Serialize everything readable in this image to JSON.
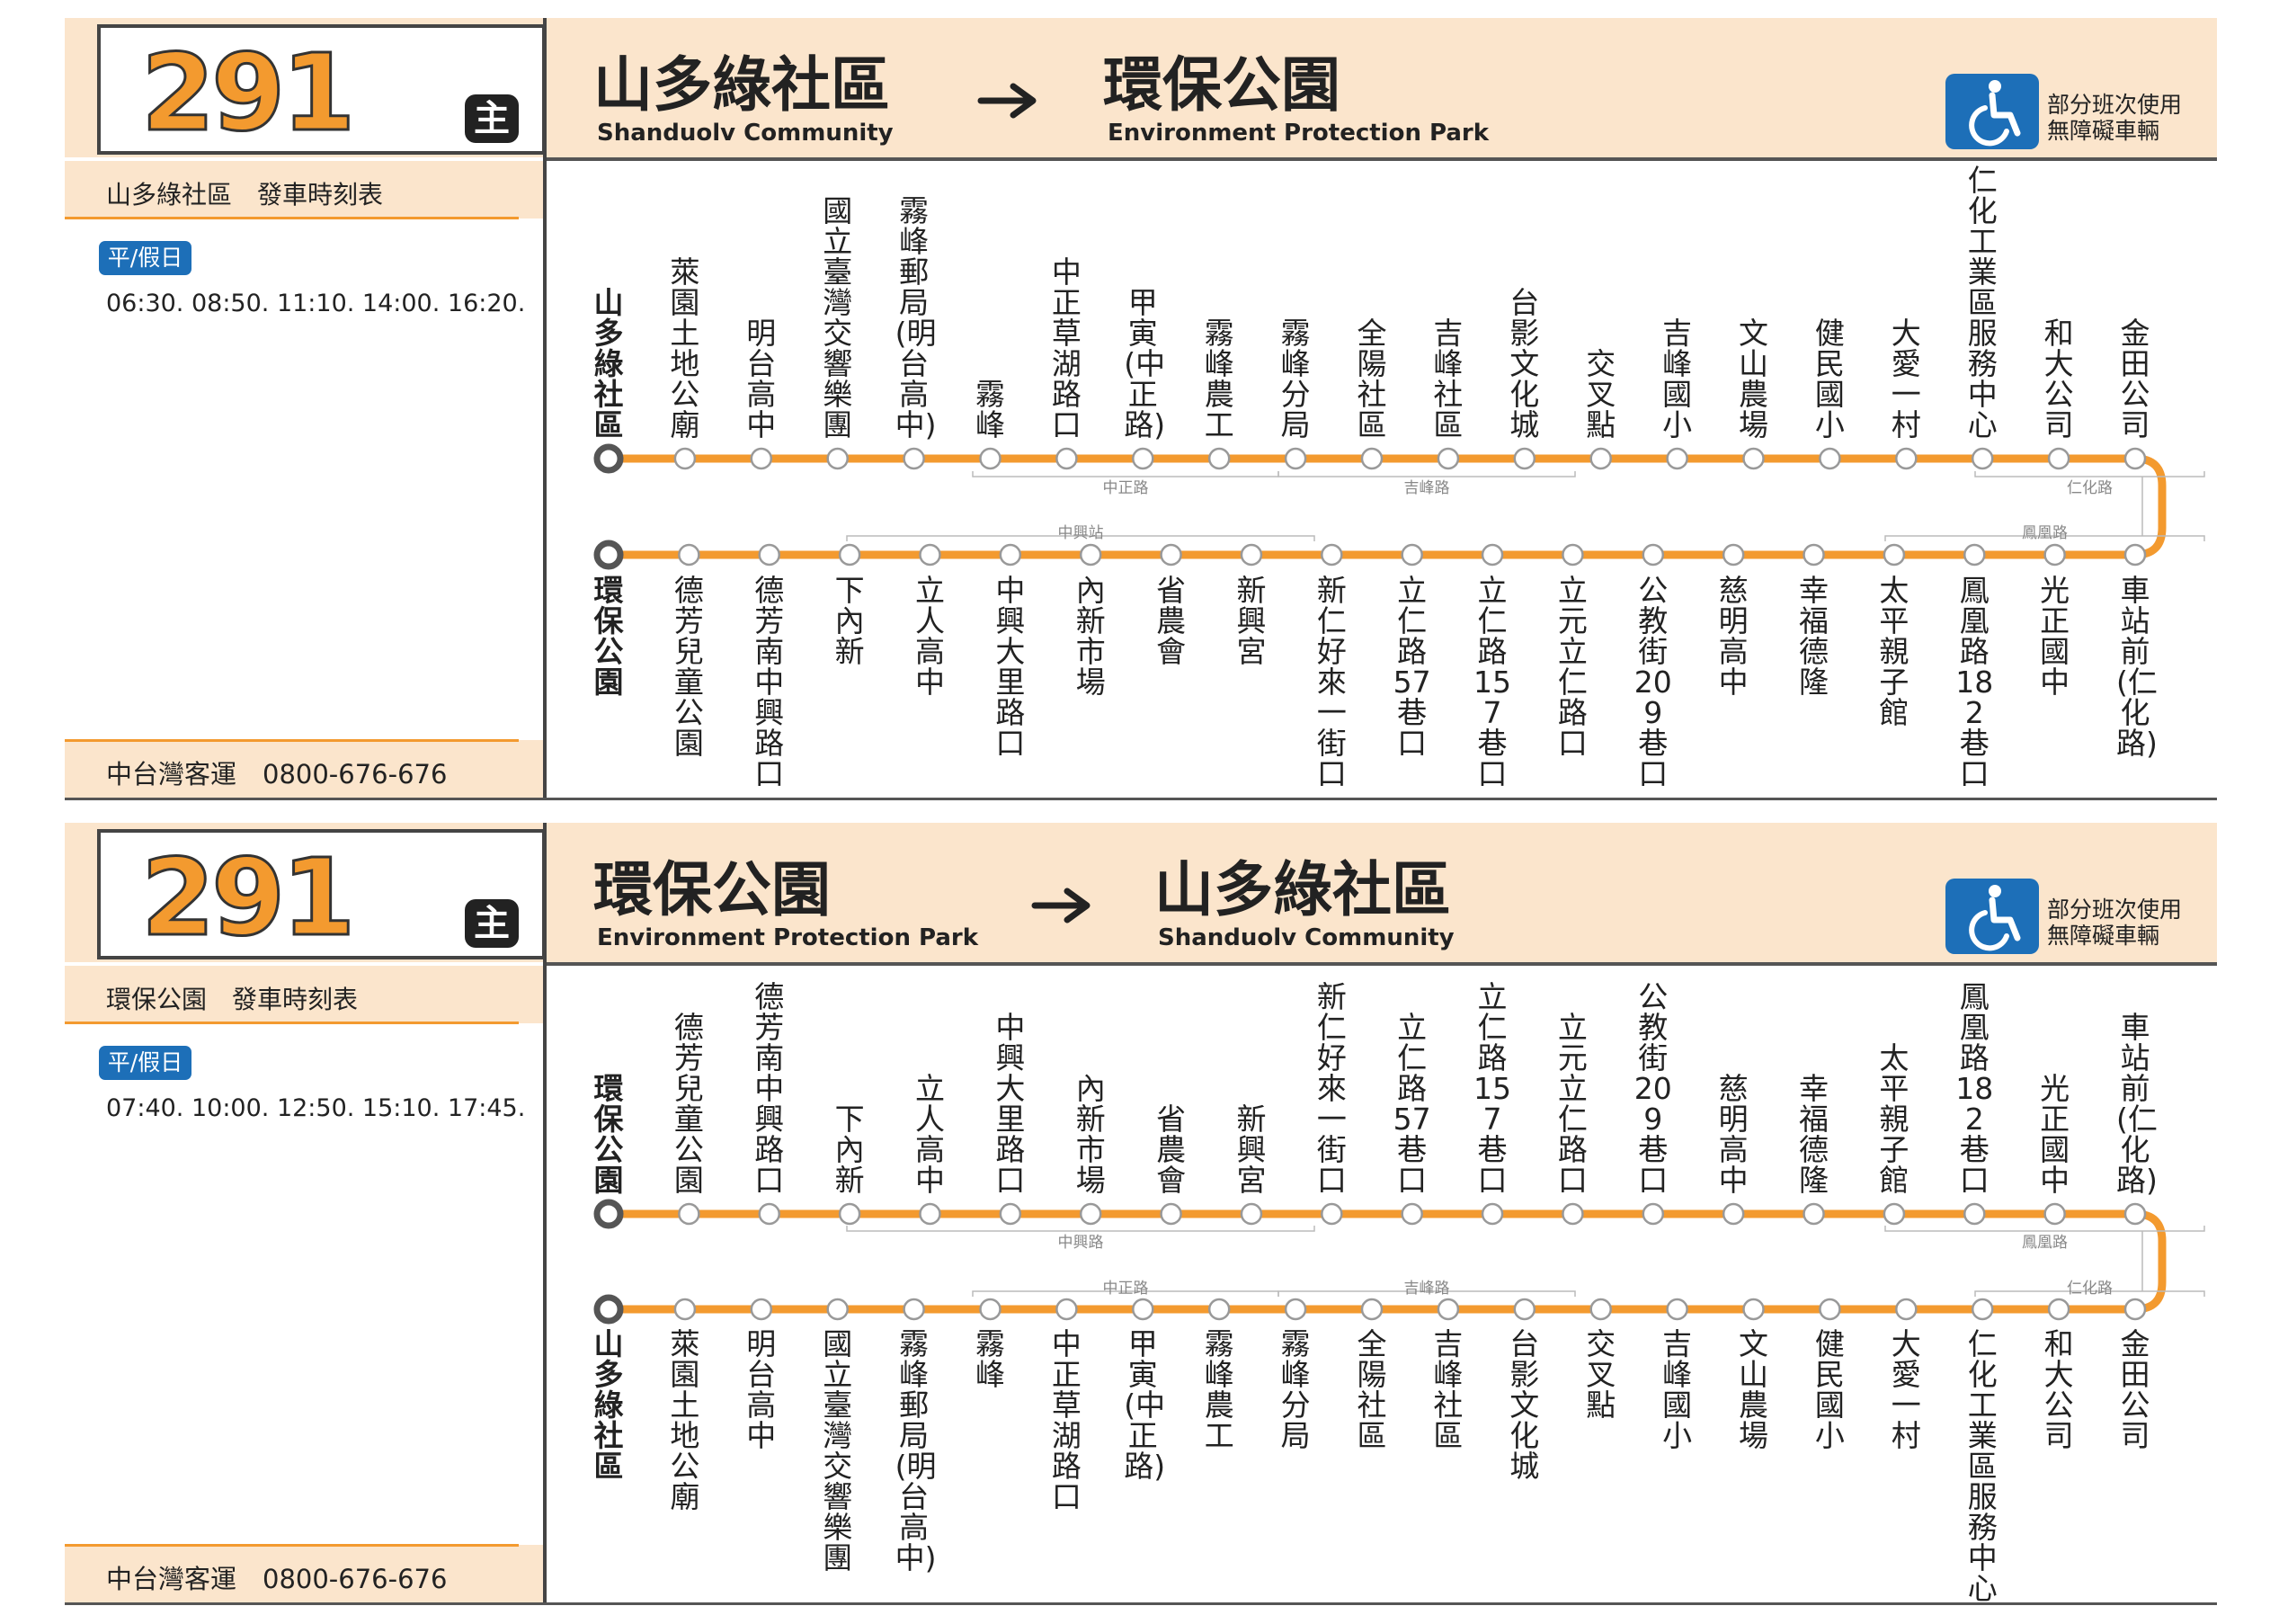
{
  "panels": [
    {
      "route_number": "291",
      "route_badge": "主",
      "from_zh": "山多綠社區",
      "from_en": "Shanduolv Community",
      "to_zh": "環保公園",
      "to_en": "Environment Protection Park",
      "schedule_title": "山多綠社區　發車時刻表",
      "day_label": "平/假日",
      "times": "06:30. 08:50. 11:10. 14:00. 16:20.",
      "company": "中台灣客運　0800-676-676",
      "accessibility_line1": "部分班次使用",
      "accessibility_line2": "無障礙車輛",
      "top_stops": [
        "山多綠社區",
        "萊園土地公廟",
        "明台高中",
        "國立臺灣交響樂團",
        "霧峰郵局(明台高中)",
        "霧峰",
        "中正草湖路口",
        "甲寅(中正路)",
        "霧峰農工",
        "霧峰分局",
        "全陽社區",
        "吉峰社區",
        "台影文化城",
        "交叉點",
        "吉峰國小",
        "文山農場",
        "健民國小",
        "大愛一村",
        "仁化工業區服務中心",
        "和大公司",
        "金田公司"
      ],
      "bottom_stops": [
        "環保公園",
        "德芳兒童公園",
        "德芳南中興路口",
        "下內新",
        "立人高中",
        "中興大里路口",
        "內新市場",
        "省農會",
        "新興宮",
        "新仁好來一街口",
        "立仁路57巷口",
        "立仁路157巷口",
        "立元立仁路口",
        "公教街209巷口",
        "慈明高中",
        "幸福德隆",
        "太平親子館",
        "鳳凰路182巷口",
        "光正國中",
        "車站前(仁化路)"
      ],
      "top_roads": [
        {
          "name": "中正路"
        },
        {
          "name": "吉峰路"
        },
        {
          "name": "仁化路"
        }
      ],
      "bottom_roads": [
        {
          "name": "中興站"
        },
        {
          "name": "鳳凰路"
        }
      ]
    },
    {
      "route_number": "291",
      "route_badge": "主",
      "from_zh": "環保公園",
      "from_en": "Environment Protection Park",
      "to_zh": "山多綠社區",
      "to_en": "Shanduolv Community",
      "schedule_title": "環保公園　發車時刻表",
      "day_label": "平/假日",
      "times": "07:40. 10:00. 12:50. 15:10. 17:45.",
      "company": "中台灣客運　0800-676-676",
      "accessibility_line1": "部分班次使用",
      "accessibility_line2": "無障礙車輛",
      "top_stops": [
        "環保公園",
        "德芳兒童公園",
        "德芳南中興路口",
        "下內新",
        "立人高中",
        "中興大里路口",
        "內新市場",
        "省農會",
        "新興宮",
        "新仁好來一街口",
        "立仁路57巷口",
        "立仁路157巷口",
        "立元立仁路口",
        "公教街209巷口",
        "慈明高中",
        "幸福德隆",
        "太平親子館",
        "鳳凰路182巷口",
        "光正國中",
        "車站前(仁化路)"
      ],
      "bottom_stops": [
        "山多綠社區",
        "萊園土地公廟",
        "明台高中",
        "國立臺灣交響樂團",
        "霧峰郵局(明台高中)",
        "霧峰",
        "中正草湖路口",
        "甲寅(中正路)",
        "霧峰農工",
        "霧峰分局",
        "全陽社區",
        "吉峰社區",
        "台影文化城",
        "交叉點",
        "吉峰國小",
        "文山農場",
        "健民國小",
        "大愛一村",
        "仁化工業區服務中心",
        "和大公司",
        "金田公司"
      ],
      "top_roads": [
        {
          "name": "中興路"
        },
        {
          "name": "鳳凰路"
        }
      ],
      "bottom_roads": [
        {
          "name": "中正路"
        },
        {
          "name": "吉峰路"
        },
        {
          "name": "仁化路"
        }
      ]
    }
  ],
  "colors": {
    "route_line": "#f39a2f",
    "header_bg": "#fbe5cc",
    "accent_blue": "#1d6fb8"
  },
  "icons": {
    "arrow": "arrow-right-icon",
    "accessibility": "wheelchair-icon"
  }
}
